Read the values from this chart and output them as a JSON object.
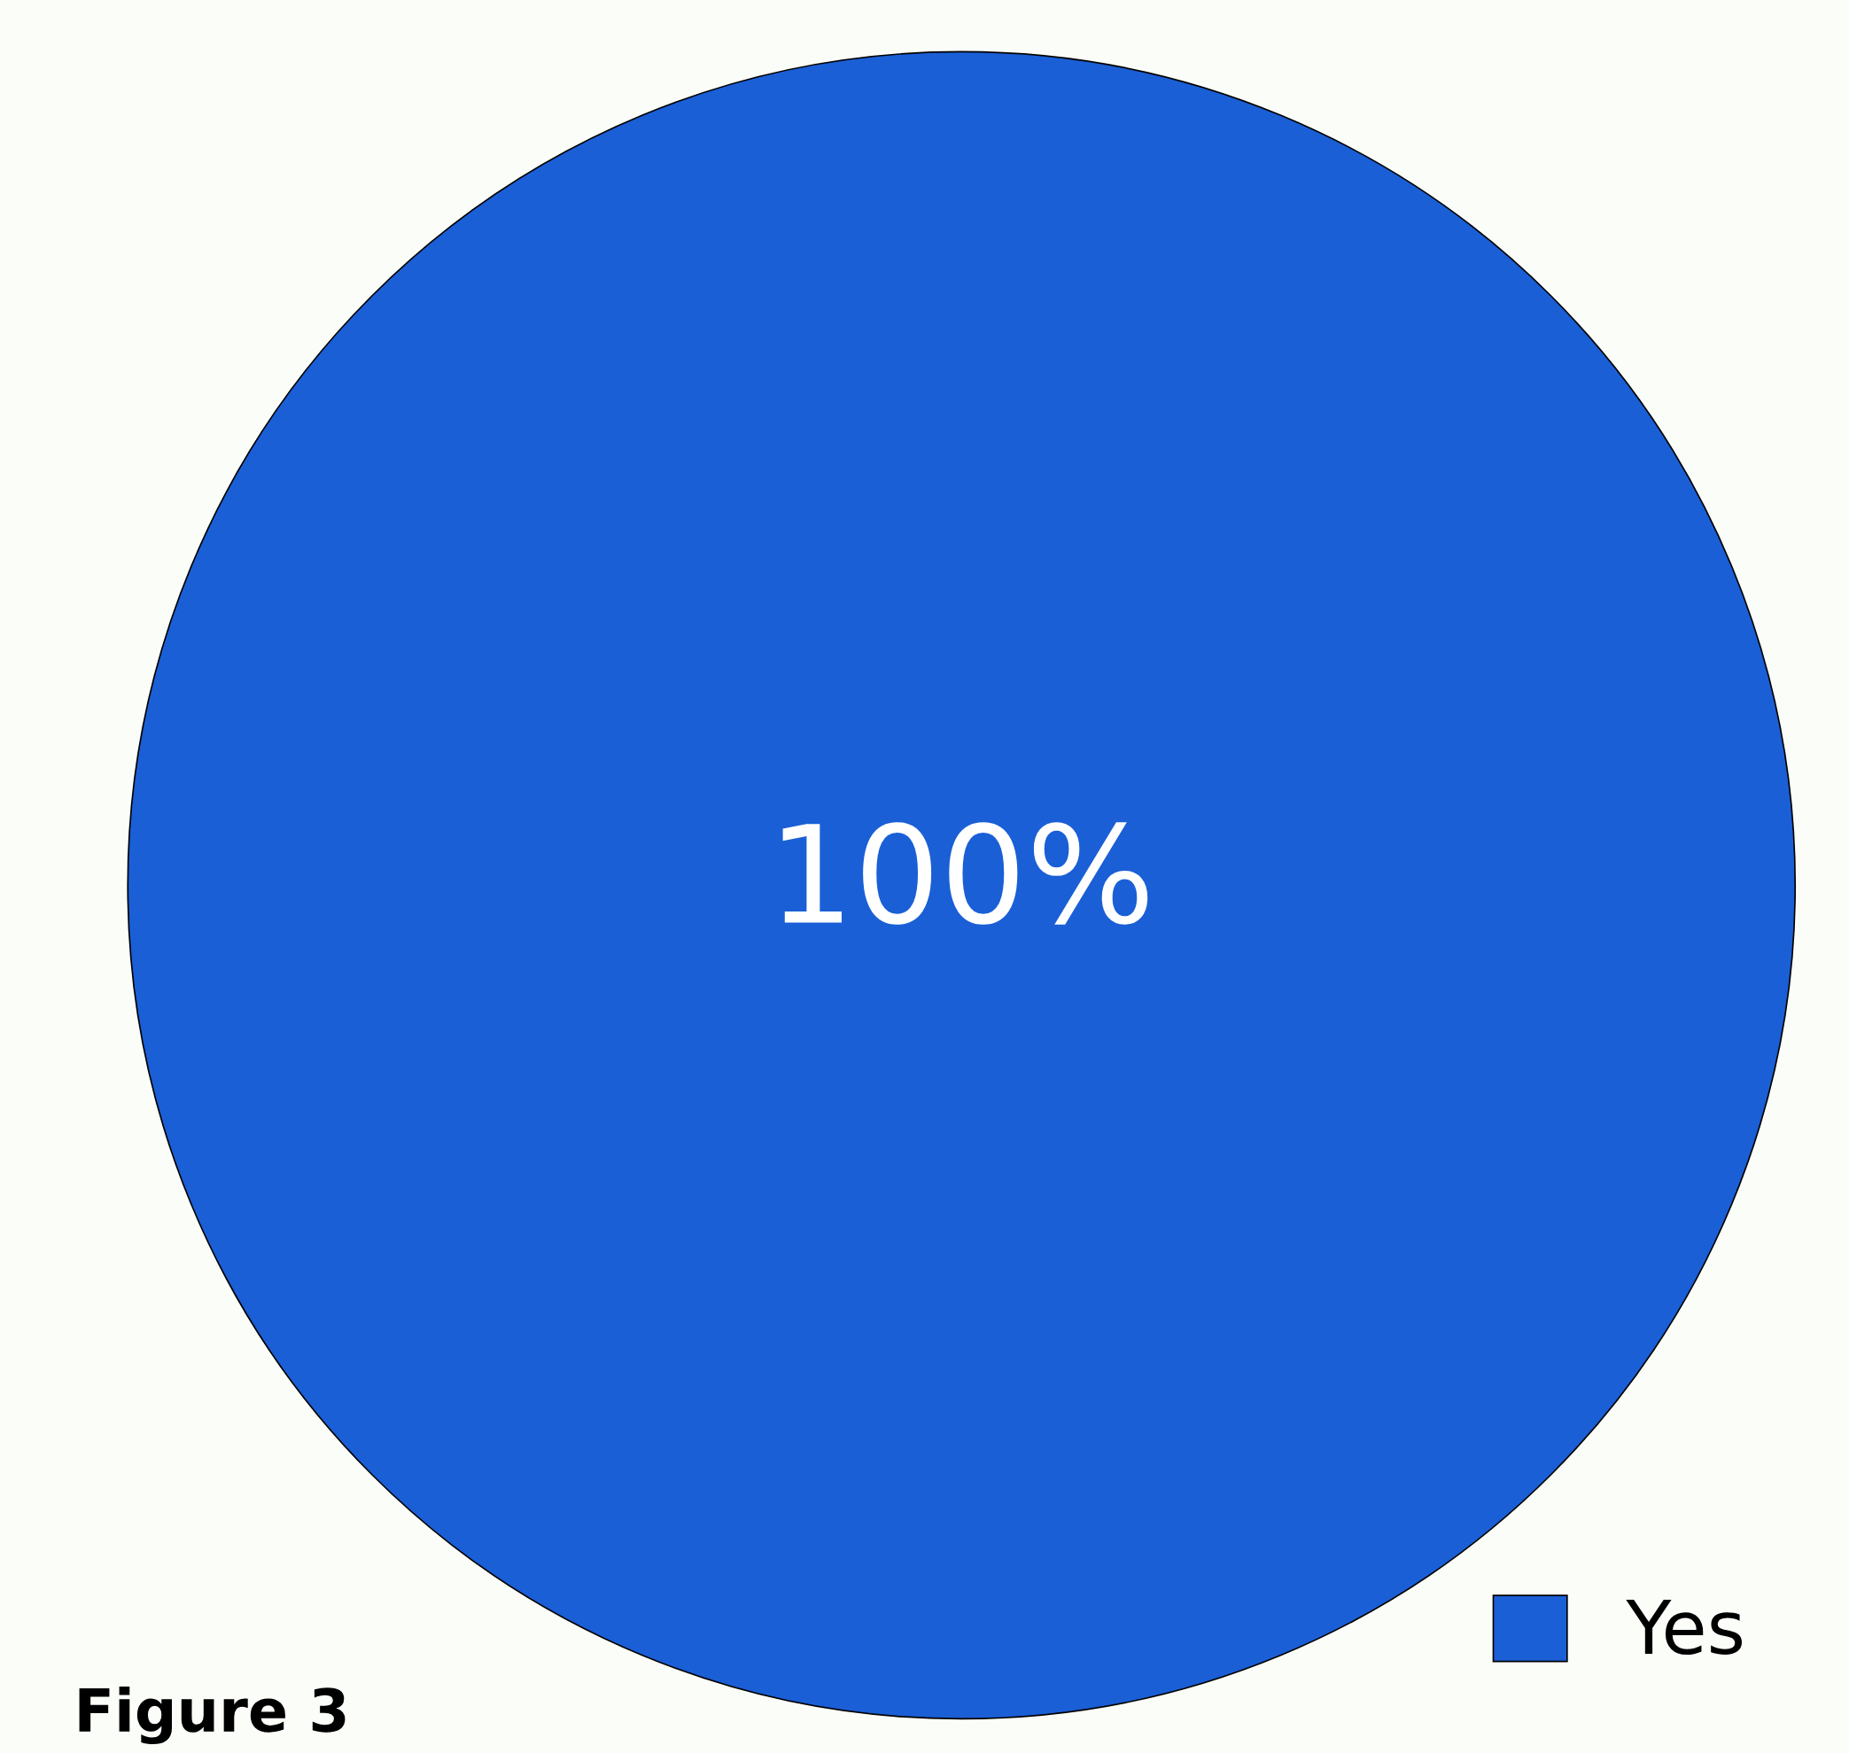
{
  "chart_data": {
    "type": "pie",
    "categories": [
      "Yes"
    ],
    "values": [
      100
    ],
    "colors": [
      "#1a5fd6"
    ],
    "value_labels": [
      "100%"
    ],
    "legend": "bottom right",
    "annotations": [
      "Figure 3"
    ]
  }
}
